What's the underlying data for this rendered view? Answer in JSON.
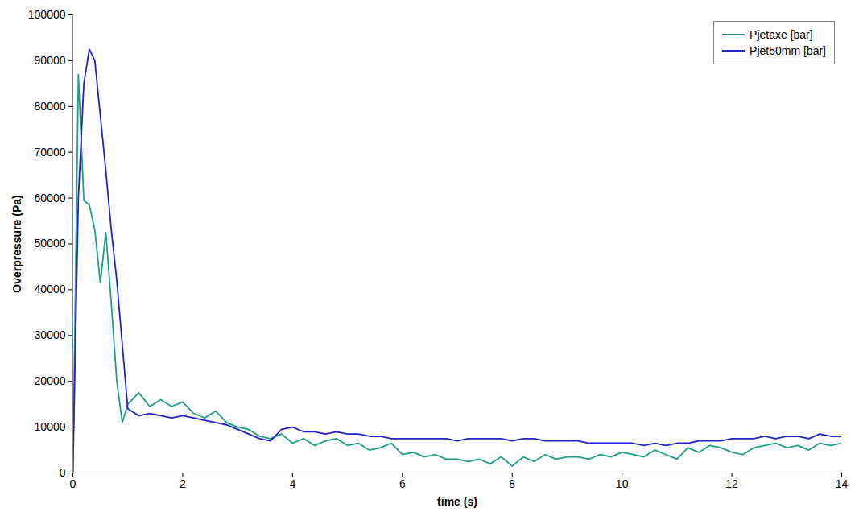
{
  "chart_data": {
    "type": "line",
    "x_label": "time (s)",
    "y_label": "Overpressure (Pa)",
    "x": [
      0,
      0.1,
      0.2,
      0.3,
      0.4,
      0.5,
      0.6,
      0.7,
      0.8,
      0.9,
      1.0,
      1.2,
      1.4,
      1.6,
      1.8,
      2.0,
      2.2,
      2.4,
      2.6,
      2.8,
      3.0,
      3.2,
      3.4,
      3.6,
      3.8,
      4.0,
      4.2,
      4.4,
      4.6,
      4.8,
      5.0,
      5.2,
      5.4,
      5.6,
      5.8,
      6.0,
      6.2,
      6.4,
      6.6,
      6.8,
      7.0,
      7.2,
      7.4,
      7.6,
      7.8,
      8.0,
      8.2,
      8.4,
      8.6,
      8.8,
      9.0,
      9.2,
      9.4,
      9.6,
      9.8,
      10.0,
      10.2,
      10.4,
      10.6,
      10.8,
      11.0,
      11.2,
      11.4,
      11.6,
      11.8,
      12.0,
      12.2,
      12.4,
      12.6,
      12.8,
      13.0,
      13.2,
      13.4,
      13.6,
      13.8,
      14.0
    ],
    "series": [
      {
        "name": "Pjetaxe [bar]",
        "color": "#1f9e89",
        "values": [
          0,
          87000,
          59500,
          58500,
          53000,
          41500,
          52500,
          37000,
          20000,
          11000,
          15000,
          17500,
          14500,
          16000,
          14500,
          15500,
          13000,
          12000,
          13500,
          11000,
          10000,
          9500,
          8000,
          7500,
          8500,
          6500,
          7500,
          6000,
          7000,
          7500,
          6000,
          6500,
          5000,
          5500,
          6500,
          4000,
          4500,
          3500,
          4000,
          3000,
          3000,
          2500,
          3000,
          2000,
          3500,
          1500,
          3500,
          2500,
          4000,
          3000,
          3500,
          3500,
          3000,
          4000,
          3500,
          4500,
          4000,
          3500,
          5000,
          4000,
          3000,
          5500,
          4500,
          6000,
          5500,
          4500,
          4000,
          5500,
          6000,
          6500,
          5500,
          6000,
          5000,
          6500,
          6000,
          6500
        ]
      },
      {
        "name": "Pjet50mm [bar]",
        "color": "#2323c8",
        "values": [
          0,
          60000,
          85000,
          92500,
          90000,
          78000,
          66000,
          53000,
          42000,
          28000,
          14000,
          12500,
          13000,
          12500,
          12000,
          12500,
          12000,
          11500,
          11000,
          10500,
          9500,
          8500,
          7500,
          7000,
          9500,
          10000,
          9000,
          9000,
          8500,
          9000,
          8500,
          8500,
          8000,
          8000,
          7500,
          7500,
          7500,
          7500,
          7500,
          7500,
          7000,
          7500,
          7500,
          7500,
          7500,
          7000,
          7500,
          7500,
          7000,
          7000,
          7000,
          7000,
          6500,
          6500,
          6500,
          6500,
          6500,
          6000,
          6500,
          6000,
          6500,
          6500,
          7000,
          7000,
          7000,
          7500,
          7500,
          7500,
          8000,
          7500,
          8000,
          8000,
          7500,
          8500,
          8000,
          8000
        ]
      }
    ],
    "xlim": [
      0,
      14
    ],
    "xticks": [
      0,
      2,
      4,
      6,
      8,
      10,
      12,
      14
    ],
    "ylim": [
      0,
      100000
    ],
    "yticks": [
      0,
      10000,
      20000,
      30000,
      40000,
      50000,
      60000,
      70000,
      80000,
      90000,
      100000
    ],
    "grid": false,
    "legend": "top-right"
  }
}
